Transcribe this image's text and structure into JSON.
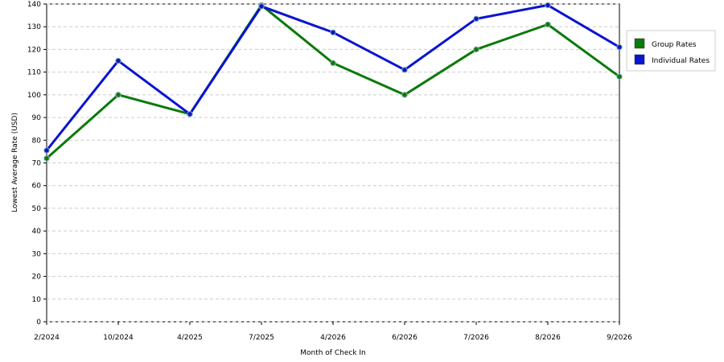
{
  "chart_data": {
    "type": "line",
    "x_label": "Month of Check In",
    "y_label": "Lowest Average Rate (USD)",
    "categories": [
      "2/2024",
      "10/2024",
      "4/2025",
      "7/2025",
      "4/2026",
      "6/2026",
      "7/2026",
      "8/2026",
      "9/2026"
    ],
    "series": [
      {
        "name": "Group Rates",
        "color": "#0a7a0a",
        "values": [
          72,
          100,
          91.5,
          139.5,
          114,
          100,
          120,
          131,
          108
        ]
      },
      {
        "name": "Individual Rates",
        "color": "#0a14d2",
        "values": [
          75.5,
          115,
          91.5,
          139,
          127.5,
          111,
          133.5,
          139.5,
          121
        ]
      }
    ],
    "ylim": [
      0,
      140
    ],
    "yticks": [
      0,
      10,
      20,
      30,
      40,
      50,
      60,
      70,
      80,
      90,
      100,
      110,
      120,
      130,
      140
    ],
    "grid": true,
    "legend": "right"
  }
}
